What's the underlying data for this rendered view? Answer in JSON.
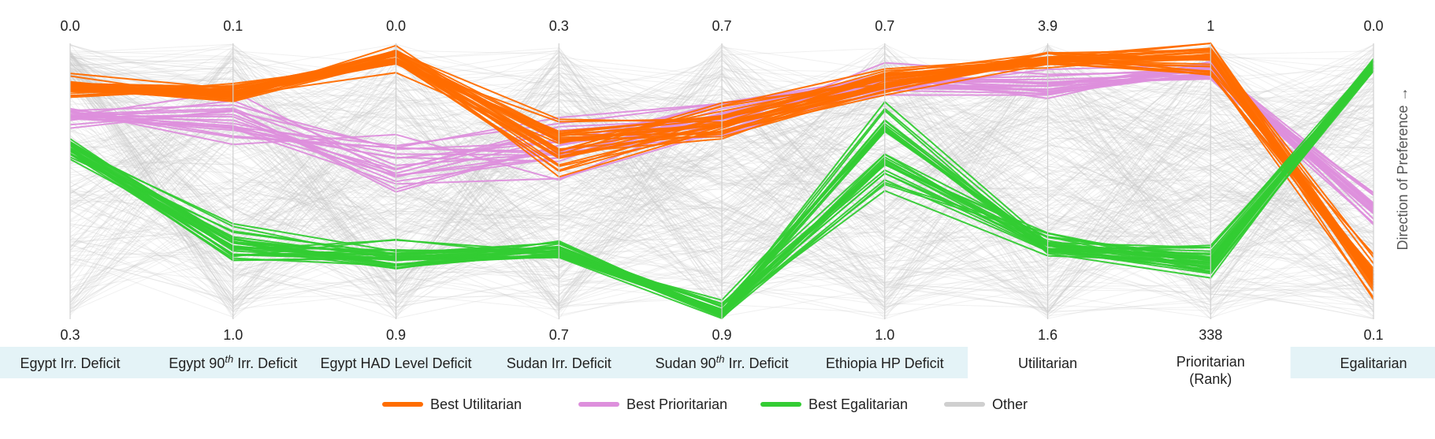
{
  "chart_data": {
    "type": "parallel_coordinates",
    "axes": [
      {
        "name": "Egypt Irr. Deficit",
        "name_sup": "",
        "name_rest": "",
        "name_line2": "",
        "top": "0.0",
        "bottom": "0.3",
        "highlight": true
      },
      {
        "name": "Egypt 90",
        "name_sup": "th",
        "name_rest": " Irr. Deficit",
        "name_line2": "",
        "top": "0.1",
        "bottom": "1.0",
        "highlight": true
      },
      {
        "name": "Egypt HAD Level Deficit",
        "name_sup": "",
        "name_rest": "",
        "name_line2": "",
        "top": "0.0",
        "bottom": "0.9",
        "highlight": true
      },
      {
        "name": "Sudan Irr. Deficit",
        "name_sup": "",
        "name_rest": "",
        "name_line2": "",
        "top": "0.3",
        "bottom": "0.7",
        "highlight": true
      },
      {
        "name": "Sudan 90",
        "name_sup": "th",
        "name_rest": " Irr. Deficit",
        "name_line2": "",
        "top": "0.7",
        "bottom": "0.9",
        "highlight": true
      },
      {
        "name": "Ethiopia HP Deficit",
        "name_sup": "",
        "name_rest": "",
        "name_line2": "",
        "top": "0.7",
        "bottom": "1.0",
        "highlight": true
      },
      {
        "name": "Utilitarian",
        "name_sup": "",
        "name_rest": "",
        "name_line2": "",
        "top": "3.9",
        "bottom": "1.6",
        "highlight": false
      },
      {
        "name": "Prioritarian",
        "name_sup": "",
        "name_rest": "",
        "name_line2": "(Rank)",
        "top": "1",
        "bottom": "338",
        "highlight": false
      },
      {
        "name": "Egalitarian",
        "name_sup": "",
        "name_rest": "",
        "name_line2": "",
        "top": "0.0",
        "bottom": "0.1",
        "highlight": true
      }
    ],
    "preference_label": "Direction of Preference →",
    "legend": [
      {
        "label": "Best Utilitarian",
        "color": "#ff6d00"
      },
      {
        "label": "Best Prioritarian",
        "color": "#dd8fdc"
      },
      {
        "label": "Best Egalitarian",
        "color": "#33cc33"
      },
      {
        "label": "Other",
        "color": "#cfcfcf"
      }
    ],
    "series": [
      {
        "name": "Best Utilitarian",
        "color": "#ff6d00",
        "count": 30,
        "base": [
          0.16,
          0.18,
          0.05,
          0.37,
          0.29,
          0.14,
          0.06,
          0.05,
          0.85
        ],
        "spread": [
          0.06,
          0.06,
          0.07,
          0.17,
          0.12,
          0.07,
          0.04,
          0.1,
          0.14
        ]
      },
      {
        "name": "Best Prioritarian",
        "color": "#dd8fdc",
        "count": 20,
        "base": [
          0.27,
          0.27,
          0.44,
          0.38,
          0.25,
          0.14,
          0.16,
          0.1,
          0.6
        ],
        "spread": [
          0.06,
          0.14,
          0.22,
          0.18,
          0.12,
          0.09,
          0.09,
          0.07,
          0.11
        ]
      },
      {
        "name": "Best Egalitarian",
        "color": "#33cc33",
        "count": 30,
        "base": [
          0.39,
          0.72,
          0.77,
          0.76,
          0.97,
          0.35,
          0.74,
          0.79,
          0.08
        ],
        "spread": [
          0.07,
          0.12,
          0.09,
          0.06,
          0.05,
          0.25,
          0.07,
          0.09,
          0.04
        ]
      },
      {
        "name": "Other",
        "color": "#c8c8c8",
        "count": 300,
        "base": [
          0.5,
          0.5,
          0.5,
          0.5,
          0.5,
          0.5,
          0.5,
          0.5,
          0.5
        ],
        "spread": [
          1.0,
          1.0,
          1.0,
          1.0,
          1.0,
          1.0,
          1.0,
          1.0,
          1.0
        ]
      }
    ]
  }
}
